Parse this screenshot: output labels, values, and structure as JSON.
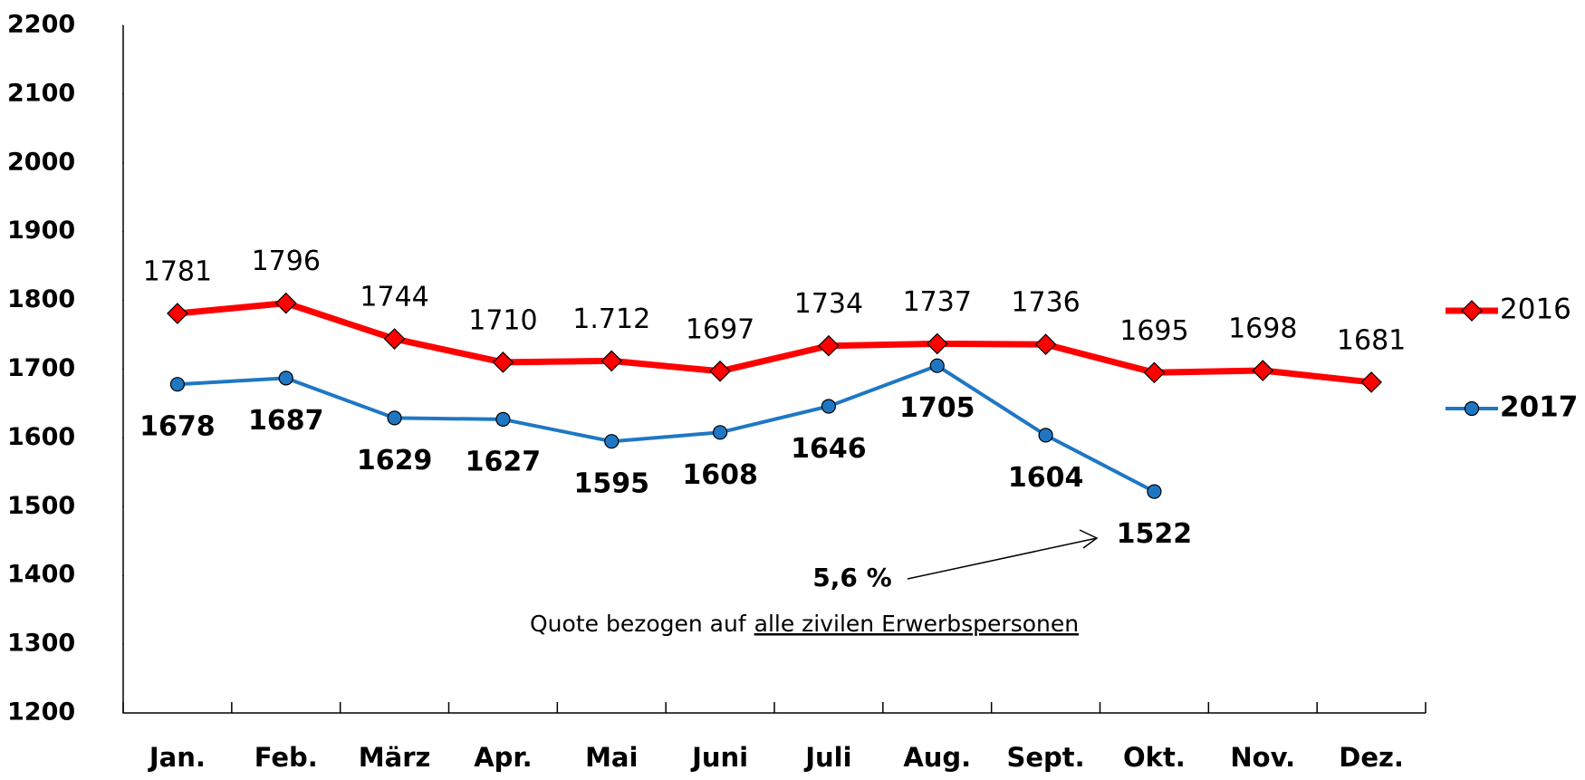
{
  "chart_data": {
    "type": "line",
    "categories": [
      "Jan.",
      "Feb.",
      "März",
      "Apr.",
      "Mai",
      "Juni",
      "Juli",
      "Aug.",
      "Sept.",
      "Okt.",
      "Nov.",
      "Dez."
    ],
    "series": [
      {
        "name": "2016",
        "color": "#ff0000",
        "marker_color": "#ff0000",
        "values": [
          1781,
          1796,
          1744,
          1710,
          1712,
          1697,
          1734,
          1737,
          1736,
          1695,
          1698,
          1681
        ],
        "value_labels": [
          "1781",
          "1796",
          "1744",
          "1710",
          "1.712",
          "1697",
          "1734",
          "1737",
          "1736",
          "1695",
          "1698",
          "1681"
        ]
      },
      {
        "name": "2017",
        "color": "#1f77c4",
        "marker_color": "#1f77c4",
        "values": [
          1678,
          1687,
          1629,
          1627,
          1595,
          1608,
          1646,
          1705,
          1604,
          1522,
          null,
          null
        ]
      }
    ],
    "ylim": [
      1200,
      2200
    ],
    "yticks": [
      1200,
      1300,
      1400,
      1500,
      1600,
      1700,
      1800,
      1900,
      2000,
      2100,
      2200
    ],
    "annotations": [
      "5,6 %",
      "Quote bezogen auf",
      "alle zivilen Erwerbspersonen"
    ],
    "legend": "right"
  }
}
